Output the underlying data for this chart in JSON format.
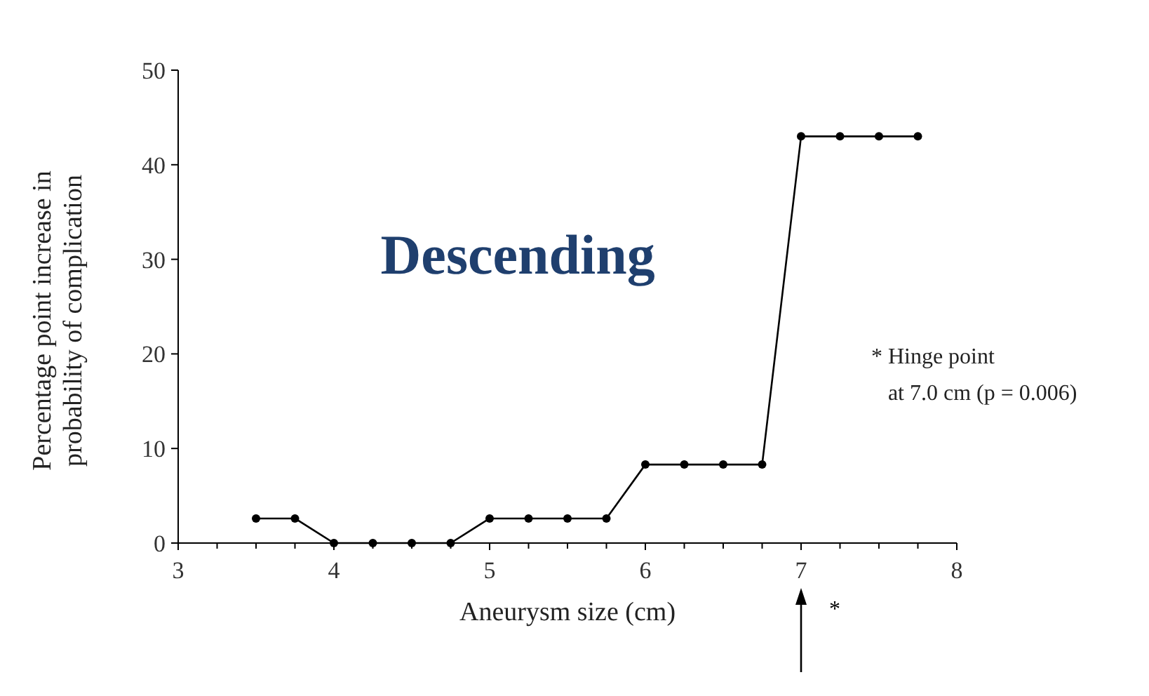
{
  "chart_data": {
    "type": "line",
    "title": "Descending",
    "xlabel": "Aneurysm size (cm)",
    "ylabel": "Percentage point increase in probability of complication",
    "x": [
      3.5,
      3.75,
      4,
      4.25,
      4.5,
      4.75,
      5,
      5.25,
      5.5,
      5.75,
      6,
      6.25,
      6.5,
      6.75,
      7,
      7.25,
      7.5,
      7.75
    ],
    "series": [
      {
        "color": "#000000",
        "values": [
          2.6,
          2.6,
          0,
          0,
          0,
          0,
          2.6,
          2.6,
          2.6,
          2.6,
          8.3,
          8.3,
          8.3,
          8.3,
          43,
          43,
          43,
          43
        ]
      }
    ],
    "xlim": [
      3,
      8
    ],
    "xticks": [
      3,
      {
        "value": 3.25,
        "label": null
      },
      {
        "value": 3.5,
        "label": null
      },
      {
        "value": 3.75,
        "label": null
      },
      4,
      {
        "value": 4.25,
        "label": null
      },
      {
        "value": 4.5,
        "label": null
      },
      {
        "value": 4.75,
        "label": null
      },
      5,
      {
        "value": 5.25,
        "label": null
      },
      {
        "value": 5.5,
        "label": null
      },
      {
        "value": 5.75,
        "label": null
      },
      6,
      {
        "value": 6.25,
        "label": null
      },
      {
        "value": 6.5,
        "label": null
      },
      {
        "value": 6.75,
        "label": null
      },
      7,
      {
        "value": 7.25,
        "label": null
      },
      {
        "value": 7.5,
        "label": null
      },
      {
        "value": 7.75,
        "label": null
      },
      8
    ],
    "ylim": [
      0,
      50
    ],
    "yticks": [
      0,
      10,
      20,
      30,
      40,
      50
    ],
    "marker": "circle",
    "line_style": "solid",
    "grid": false,
    "annotations": [
      "* Hinge point",
      "at 7.0 cm (p = 0.006)",
      "*"
    ]
  }
}
